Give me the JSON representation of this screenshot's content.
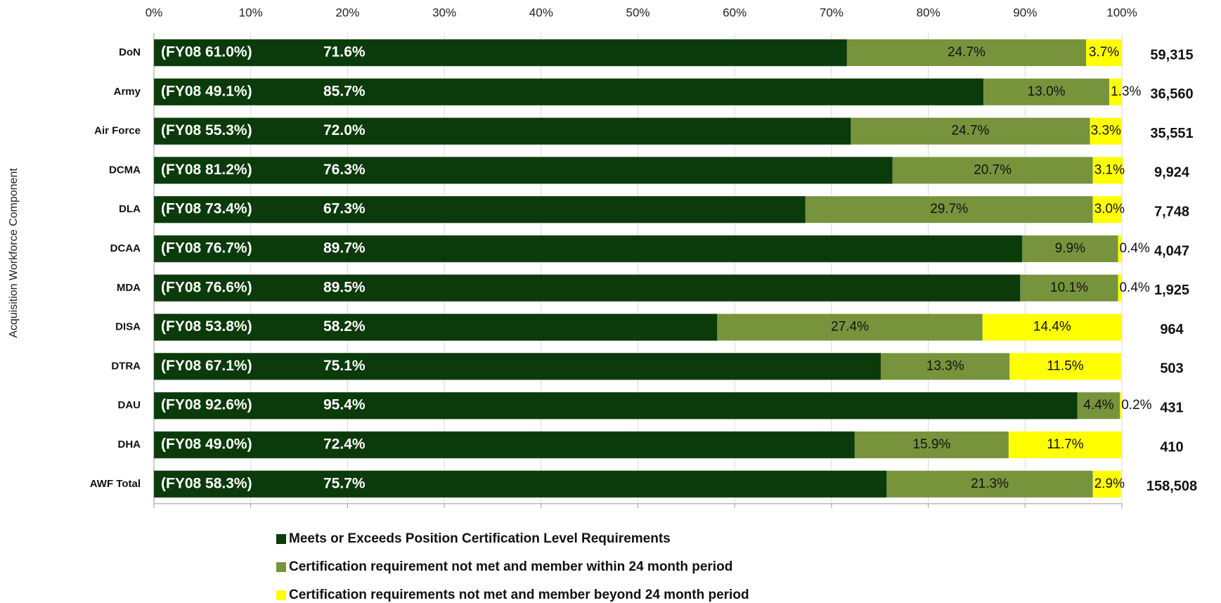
{
  "chart_data": {
    "type": "stacked_barh",
    "y_axis_label": "Acquisition Workforce Component",
    "categories": [
      "DoN",
      "Army",
      "Air Force",
      "DCMA",
      "DLA",
      "DCAA",
      "MDA",
      "DISA",
      "DTRA",
      "DAU",
      "DHA",
      "AWF Total"
    ],
    "series": [
      {
        "name": "Meets or Exceeds Position Certification Level Requirements",
        "color": "#0b3a0b",
        "values": [
          71.6,
          85.7,
          72.0,
          76.3,
          67.3,
          89.7,
          89.5,
          58.2,
          75.1,
          95.4,
          72.4,
          75.7
        ],
        "value_labels": [
          "71.6%",
          "85.7%",
          "72.0%",
          "76.3%",
          "67.3%",
          "89.7%",
          "89.5%",
          "58.2%",
          "75.1%",
          "95.4%",
          "72.4%",
          "75.7%"
        ]
      },
      {
        "name": "Certification requirement not met and member within 24 month period",
        "color": "#77933c",
        "values": [
          24.7,
          13.0,
          24.7,
          20.7,
          29.7,
          9.9,
          10.1,
          27.4,
          13.3,
          4.4,
          15.9,
          21.3
        ],
        "value_labels": [
          "24.7%",
          "13.0%",
          "24.7%",
          "20.7%",
          "29.7%",
          "9.9%",
          "10.1%",
          "27.4%",
          "13.3%",
          "4.4%",
          "15.9%",
          "21.3%"
        ]
      },
      {
        "name": "Certification requirements not met and member beyond 24 month period",
        "color": "#ffff00",
        "values": [
          3.7,
          1.3,
          3.3,
          3.1,
          3.0,
          0.4,
          0.4,
          14.4,
          11.5,
          0.2,
          11.7,
          2.9
        ],
        "value_labels": [
          "3.7%",
          "1.3%",
          "3.3%",
          "3.1%",
          "3.0%",
          "0.4%",
          "0.4%",
          "14.4%",
          "11.5%",
          "0.2%",
          "11.7%",
          "2.9%"
        ]
      }
    ],
    "fy08": [
      {
        "value": 61.0,
        "label": "(FY08 61.0%)"
      },
      {
        "value": 49.1,
        "label": "(FY08 49.1%)"
      },
      {
        "value": 55.3,
        "label": "(FY08 55.3%)"
      },
      {
        "value": 81.2,
        "label": "(FY08 81.2%)"
      },
      {
        "value": 73.4,
        "label": "(FY08 73.4%)"
      },
      {
        "value": 76.7,
        "label": "(FY08 76.7%)"
      },
      {
        "value": 76.6,
        "label": "(FY08 76.6%)"
      },
      {
        "value": 53.8,
        "label": "(FY08 53.8%)"
      },
      {
        "value": 67.1,
        "label": "(FY08 67.1%)"
      },
      {
        "value": 92.6,
        "label": "(FY08 92.6%)"
      },
      {
        "value": 49.0,
        "label": "(FY08 49.0%)"
      },
      {
        "value": 58.3,
        "label": "(FY08 58.3%)"
      }
    ],
    "totals": [
      {
        "value": 59315,
        "label": "59,315"
      },
      {
        "value": 36560,
        "label": "36,560"
      },
      {
        "value": 35551,
        "label": "35,551"
      },
      {
        "value": 9924,
        "label": "9,924"
      },
      {
        "value": 7748,
        "label": "7,748"
      },
      {
        "value": 4047,
        "label": "4,047"
      },
      {
        "value": 1925,
        "label": "1,925"
      },
      {
        "value": 964,
        "label": "964"
      },
      {
        "value": 503,
        "label": "503"
      },
      {
        "value": 431,
        "label": "431"
      },
      {
        "value": 410,
        "label": "410"
      },
      {
        "value": 158508,
        "label": "158,508"
      }
    ],
    "xlim": [
      0,
      100
    ],
    "xticks": [
      {
        "value": 0,
        "label": "0%"
      },
      {
        "value": 10,
        "label": "10%"
      },
      {
        "value": 20,
        "label": "20%"
      },
      {
        "value": 30,
        "label": "30%"
      },
      {
        "value": 40,
        "label": "40%"
      },
      {
        "value": 50,
        "label": "50%"
      },
      {
        "value": 60,
        "label": "60%"
      },
      {
        "value": 70,
        "label": "70%"
      },
      {
        "value": 80,
        "label": "80%"
      },
      {
        "value": 90,
        "label": "90%"
      },
      {
        "value": 100,
        "label": "100%"
      }
    ],
    "grid": true,
    "legend": "bottom"
  }
}
